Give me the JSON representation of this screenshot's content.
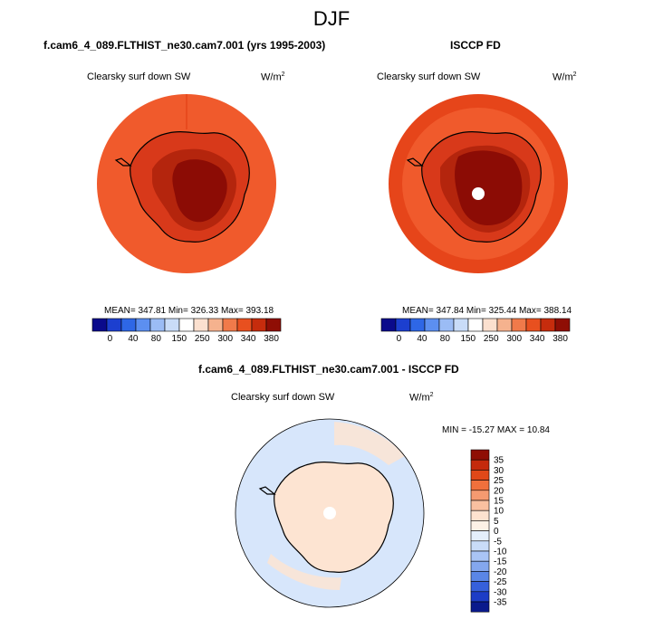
{
  "title": "DJF",
  "panels": [
    {
      "case": "f.cam6_4_089.FLTHIST_ne30.cam7.001 (yrs 1995-2003)",
      "field": "Clearsky surf down SW",
      "units_base": "W/m",
      "units_sup": "2",
      "stats": "MEAN= 347.81  Min= 326.33  Max= 393.18",
      "colorbar_labels": [
        "0",
        "40",
        "80",
        "150",
        "250",
        "300",
        "340",
        "380"
      ]
    },
    {
      "case": "ISCCP FD",
      "field": "Clearsky surf down SW",
      "units_base": "W/m",
      "units_sup": "2",
      "stats": "MEAN= 347.84  Min= 325.44  Max= 388.14",
      "colorbar_labels": [
        "0",
        "40",
        "80",
        "150",
        "250",
        "300",
        "340",
        "380"
      ]
    }
  ],
  "diff": {
    "case": "f.cam6_4_089.FLTHIST_ne30.cam7.001 - ISCCP FD",
    "field": "Clearsky surf down SW",
    "units_base": "W/m",
    "units_sup": "2",
    "stats": "MIN = -15.27 MAX =  10.84",
    "colorbar_labels": [
      "35",
      "30",
      "25",
      "20",
      "15",
      "10",
      "5",
      "0",
      "-5",
      "-10",
      "-15",
      "-20",
      "-25",
      "-30",
      "-35"
    ]
  },
  "colors": {
    "abs_palette": [
      "#0a0a8c",
      "#1c3fcf",
      "#2e67e6",
      "#5c8ff0",
      "#9bbcf5",
      "#c9dcf8",
      "#ffffff",
      "#fbe0cf",
      "#f5b28e",
      "#f07a4a",
      "#e8501f",
      "#c62c0d",
      "#8f0e05"
    ],
    "diff_palette": [
      "#8f0e05",
      "#c42a0c",
      "#e04818",
      "#f0703c",
      "#f59a70",
      "#f9c0a0",
      "#fde2cf",
      "#fdf1e6",
      "#e4eefb",
      "#c9dcf8",
      "#a9c4f5",
      "#84a7ee",
      "#5a86e6",
      "#3660db",
      "#1d3dc6",
      "#0a1a8c"
    ],
    "ocean_abs": "#f05a2c",
    "ocean_abs_outer": "#e6451a",
    "coast_band": "#d8391a",
    "plateau": "#b4250d",
    "interior": "#8c0c05",
    "diff_ocean": "#d7e6fb",
    "diff_land": "#fde4d2"
  }
}
